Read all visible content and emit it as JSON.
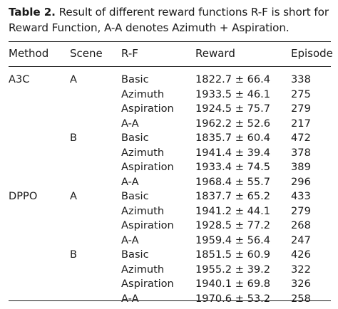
{
  "caption": {
    "label": "Table 2.",
    "text": "Result of different reward functions R-F is short for Reward Function, A-A denotes Azimuth + Aspiration."
  },
  "table": {
    "headers": [
      "Method",
      "Scene",
      "R-F",
      "Reward",
      "Episode"
    ],
    "rows": [
      [
        "A3C",
        "A",
        "Basic",
        "1822.7 ± 66.4",
        "338"
      ],
      [
        "",
        "",
        "Azimuth",
        "1933.5 ± 46.1",
        "275"
      ],
      [
        "",
        "",
        "Aspiration",
        "1924.5 ± 75.7",
        "279"
      ],
      [
        "",
        "",
        "A-A",
        "1962.2 ± 52.6",
        "217"
      ],
      [
        "",
        "B",
        "Basic",
        "1835.7 ± 60.4",
        "472"
      ],
      [
        "",
        "",
        "Azimuth",
        "1941.4 ± 39.4",
        "378"
      ],
      [
        "",
        "",
        "Aspiration",
        "1933.4 ± 74.5",
        "389"
      ],
      [
        "",
        "",
        "A-A",
        "1968.4 ± 55.7",
        "296"
      ],
      [
        "DPPO",
        "A",
        "Basic",
        "1837.7 ± 65.2",
        "433"
      ],
      [
        "",
        "",
        "Azimuth",
        "1941.2 ± 44.1",
        "279"
      ],
      [
        "",
        "",
        "Aspiration",
        "1928.5 ± 77.2",
        "268"
      ],
      [
        "",
        "",
        "A-A",
        "1959.4 ± 56.4",
        "247"
      ],
      [
        "",
        "B",
        "Basic",
        "1851.5 ± 60.9",
        "426"
      ],
      [
        "",
        "",
        "Azimuth",
        "1955.2 ± 39.2",
        "322"
      ],
      [
        "",
        "",
        "Aspiration",
        "1940.1 ± 69.8",
        "326"
      ],
      [
        "",
        "",
        "A-A",
        "1970.6 ± 53.2",
        "258"
      ]
    ]
  }
}
